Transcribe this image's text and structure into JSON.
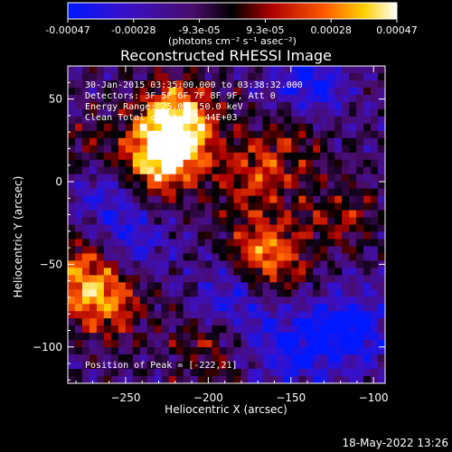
{
  "colorbar": {
    "ticks": [
      "-0.00047",
      "-0.00028",
      "-9.3e-05",
      "9.3e-05",
      "0.00028",
      "0.00047"
    ],
    "unit_label": "(photons cm⁻² s⁻¹ asec⁻²)"
  },
  "chart_data": {
    "type": "heatmap",
    "title": "Reconstructed RHESSI Image",
    "xlabel": "Heliocentric X (arcsec)",
    "ylabel": "Heliocentric Y (arcsec)",
    "xlim": [
      -285,
      -93
    ],
    "ylim": [
      -122,
      70
    ],
    "x_ticks": [
      -250,
      -200,
      -150,
      -100
    ],
    "y_ticks": [
      50,
      0,
      -50,
      -100
    ],
    "clim": [
      -0.00047,
      0.00047
    ],
    "colormap": "blue-purple-red-orange-yellow-white (RHESSI)",
    "bright_regions": [
      {
        "x": -222,
        "y": 21,
        "rel": 1.0
      },
      {
        "x": -218,
        "y": 40,
        "rel": 0.8
      },
      {
        "x": -242,
        "y": 5,
        "rel": 0.7
      },
      {
        "x": -165,
        "y": -45,
        "rel": 0.85
      },
      {
        "x": -172,
        "y": 2,
        "rel": 0.55
      },
      {
        "x": -262,
        "y": -72,
        "rel": 0.7
      },
      {
        "x": -278,
        "y": -55,
        "rel": 0.6
      },
      {
        "x": -270,
        "y": 15,
        "rel": 0.45
      },
      {
        "x": -148,
        "y": 32,
        "rel": 0.45
      },
      {
        "x": -120,
        "y": -20,
        "rel": 0.4
      },
      {
        "x": -200,
        "y": -100,
        "rel": 0.35
      }
    ],
    "dark_regions": [
      {
        "x": -260,
        "y": 0,
        "rel": -0.8
      },
      {
        "x": -140,
        "y": 55,
        "rel": -0.7
      },
      {
        "x": -115,
        "y": -90,
        "rel": -0.75
      },
      {
        "x": -185,
        "y": -70,
        "rel": -0.5
      },
      {
        "x": -245,
        "y": -35,
        "rel": -0.45
      },
      {
        "x": -150,
        "y": -100,
        "rel": -0.6
      }
    ],
    "peak": {
      "x": -222,
      "y": 21
    }
  },
  "annotations": [
    "30-Jan-2015 03:35:00.000 to 03:38:32.000",
    "Detectors: 3F 5F 6F 7F 8F 9F, Att 0",
    "Energy Range: 25.0 - 50.0 keV",
    "Clean     Total counts: 5.44E+03"
  ],
  "peak_label": "Position of Peak = [-222,21]",
  "footer_timestamp": "18-May-2022 13:26"
}
